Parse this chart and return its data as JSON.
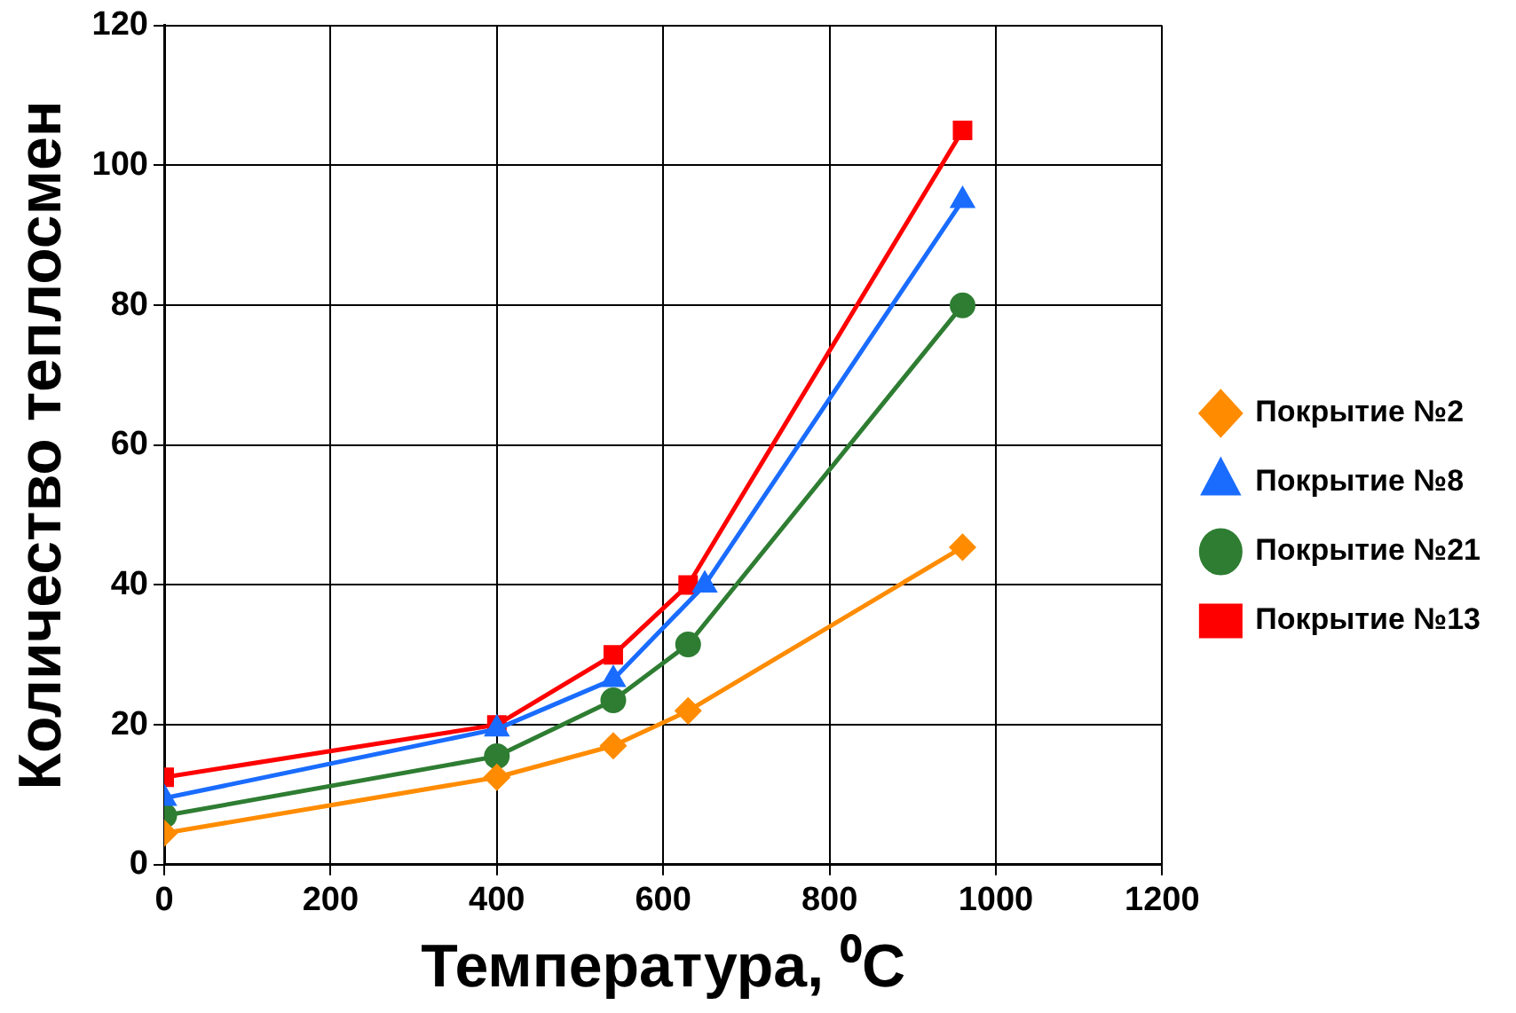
{
  "chart_data": {
    "type": "line",
    "xlabel": "Температура, ⁰C",
    "ylabel": "Количество теплосмен",
    "xlim": [
      0,
      1200
    ],
    "xticks": [
      0,
      200,
      400,
      600,
      800,
      1000,
      1200
    ],
    "ylim": [
      0,
      120
    ],
    "yticks": [
      0,
      20,
      40,
      60,
      80,
      100,
      120
    ],
    "grid": true,
    "legend": "right",
    "line_style": "solid",
    "series": [
      {
        "name": "Покрытие №2",
        "color": "#ff8c00",
        "marker": "diamond",
        "x": [
          0,
          400,
          540,
          630,
          960
        ],
        "values": [
          4.5,
          12.5,
          17,
          22,
          45.4
        ]
      },
      {
        "name": "Покрытие №8",
        "color": "#1a6cff",
        "marker": "triangle",
        "x": [
          0,
          400,
          540,
          650,
          960
        ],
        "values": [
          9.5,
          19.4,
          26.5,
          40,
          95
        ]
      },
      {
        "name": "Покрытие №21",
        "color": "#2e7d32",
        "marker": "circle",
        "x": [
          0,
          400,
          540,
          630,
          960
        ],
        "values": [
          7,
          15.5,
          23.5,
          31.5,
          80
        ]
      },
      {
        "name": "Покрытие №13",
        "color": "#ff0000",
        "marker": "square",
        "x": [
          0,
          400,
          540,
          630,
          960
        ],
        "values": [
          12.5,
          20,
          30,
          40,
          105
        ]
      }
    ]
  }
}
